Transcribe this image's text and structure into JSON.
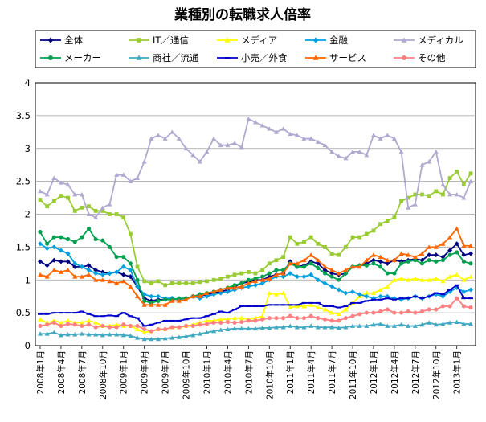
{
  "chart_data": {
    "type": "line",
    "title": "業種別の転職求人倍率",
    "xlabel": "",
    "ylabel": "",
    "ylim": [
      0,
      4
    ],
    "yticks": [
      "0",
      "0.5",
      "1",
      "1.5",
      "2",
      "2.5",
      "3",
      "3.5",
      "4"
    ],
    "grid": true,
    "legend": "top",
    "x": [
      "2008年1月",
      "2008年2月",
      "2008年3月",
      "2008年4月",
      "2008年5月",
      "2008年6月",
      "2008年7月",
      "2008年8月",
      "2008年9月",
      "2008年10月",
      "2008年11月",
      "2008年12月",
      "2009年1月",
      "2009年2月",
      "2009年3月",
      "2009年4月",
      "2009年5月",
      "2009年6月",
      "2009年7月",
      "2009年8月",
      "2009年9月",
      "2009年10月",
      "2009年11月",
      "2009年12月",
      "2010年1月",
      "2010年2月",
      "2010年3月",
      "2010年4月",
      "2010年5月",
      "2010年6月",
      "2010年7月",
      "2010年8月",
      "2010年9月",
      "2010年10月",
      "2010年11月",
      "2010年12月",
      "2011年1月",
      "2011年2月",
      "2011年3月",
      "2011年4月",
      "2011年5月",
      "2011年6月",
      "2011年7月",
      "2011年8月",
      "2011年9月",
      "2011年10月",
      "2011年11月",
      "2011年12月",
      "2012年1月",
      "2012年2月",
      "2012年3月",
      "2012年4月",
      "2012年5月",
      "2012年6月",
      "2012年7月",
      "2012年8月",
      "2012年9月",
      "2012年10月",
      "2012年11月",
      "2012年12月",
      "2013年1月",
      "2013年2月",
      "2013年3月"
    ],
    "xtick_labels": [
      "2008年1月",
      "2008年4月",
      "2008年7月",
      "2008年10月",
      "2009年1月",
      "2009年4月",
      "2009年7月",
      "2009年10月",
      "2010年1月",
      "2010年4月",
      "2010年7月",
      "2010年10月",
      "2011年1月",
      "2011年4月",
      "2011年7月",
      "2011年10月",
      "2012年1月",
      "2012年4月",
      "2012年7月",
      "2012年10月",
      "2013年1月"
    ],
    "series": [
      {
        "name": "全体",
        "color": "#000080",
        "marker": "diamond",
        "values": [
          1.28,
          1.22,
          1.3,
          1.28,
          1.28,
          1.2,
          1.2,
          1.22,
          1.15,
          1.12,
          1.1,
          1.12,
          1.08,
          1.05,
          0.9,
          0.72,
          0.68,
          0.7,
          0.7,
          0.72,
          0.7,
          0.72,
          0.75,
          0.75,
          0.78,
          0.8,
          0.82,
          0.85,
          0.9,
          0.95,
          0.97,
          1.0,
          1.0,
          1.05,
          1.08,
          1.1,
          1.28,
          1.2,
          1.22,
          1.28,
          1.25,
          1.15,
          1.1,
          1.08,
          1.1,
          1.2,
          1.22,
          1.25,
          1.3,
          1.28,
          1.25,
          1.3,
          1.28,
          1.3,
          1.32,
          1.3,
          1.38,
          1.38,
          1.35,
          1.45,
          1.55,
          1.38,
          1.4
        ]
      },
      {
        "name": "IT／通信",
        "color": "#99CC33",
        "marker": "square",
        "values": [
          2.22,
          2.12,
          2.2,
          2.28,
          2.25,
          2.05,
          2.1,
          2.12,
          2.05,
          2.05,
          2.0,
          2.0,
          1.95,
          1.7,
          1.2,
          0.98,
          0.95,
          0.98,
          0.92,
          0.95,
          0.95,
          0.95,
          0.95,
          0.97,
          0.98,
          1.0,
          1.02,
          1.05,
          1.08,
          1.1,
          1.12,
          1.1,
          1.15,
          1.25,
          1.3,
          1.35,
          1.65,
          1.55,
          1.58,
          1.65,
          1.55,
          1.5,
          1.4,
          1.38,
          1.5,
          1.65,
          1.65,
          1.7,
          1.75,
          1.85,
          1.9,
          1.95,
          2.2,
          2.25,
          2.3,
          2.3,
          2.28,
          2.35,
          2.3,
          2.55,
          2.65,
          2.45,
          2.62
        ]
      },
      {
        "name": "メディア",
        "color": "#FFFF00",
        "marker": "triangle",
        "values": [
          0.4,
          0.35,
          0.38,
          0.35,
          0.38,
          0.35,
          0.35,
          0.38,
          0.35,
          0.3,
          0.3,
          0.32,
          0.3,
          0.3,
          0.25,
          0.2,
          0.22,
          0.25,
          0.25,
          0.28,
          0.28,
          0.3,
          0.32,
          0.35,
          0.38,
          0.38,
          0.4,
          0.4,
          0.42,
          0.42,
          0.4,
          0.42,
          0.45,
          0.8,
          0.78,
          0.8,
          0.58,
          0.6,
          0.6,
          0.62,
          0.58,
          0.55,
          0.5,
          0.48,
          0.55,
          0.65,
          0.75,
          0.8,
          0.8,
          0.85,
          0.9,
          1.0,
          1.02,
          1.0,
          1.02,
          1.0,
          1.0,
          1.02,
          0.98,
          1.05,
          1.08,
          1.0,
          1.05
        ]
      },
      {
        "name": "金融",
        "color": "#00A0E0",
        "marker": "diamond",
        "values": [
          1.55,
          1.48,
          1.5,
          1.45,
          1.4,
          1.25,
          1.2,
          1.15,
          1.1,
          1.08,
          1.1,
          1.12,
          1.2,
          1.15,
          0.9,
          0.78,
          0.75,
          0.75,
          0.72,
          0.72,
          0.7,
          0.72,
          0.75,
          0.72,
          0.75,
          0.78,
          0.8,
          0.82,
          0.85,
          0.88,
          0.9,
          0.92,
          0.95,
          1.0,
          1.05,
          1.05,
          1.1,
          1.05,
          1.05,
          1.08,
          1.0,
          0.95,
          0.9,
          0.85,
          0.8,
          0.82,
          0.78,
          0.75,
          0.72,
          0.75,
          0.75,
          0.72,
          0.7,
          0.72,
          0.75,
          0.72,
          0.75,
          0.78,
          0.75,
          0.82,
          0.88,
          0.82,
          0.85
        ]
      },
      {
        "name": "メディカル",
        "color": "#B0A8D0",
        "marker": "triangle",
        "values": [
          2.35,
          2.3,
          2.55,
          2.48,
          2.45,
          2.3,
          2.3,
          2.0,
          1.95,
          2.1,
          2.15,
          2.6,
          2.6,
          2.5,
          2.55,
          2.8,
          3.15,
          3.2,
          3.15,
          3.25,
          3.15,
          3.0,
          2.9,
          2.8,
          2.95,
          3.15,
          3.05,
          3.05,
          3.08,
          3.02,
          3.45,
          3.4,
          3.35,
          3.3,
          3.25,
          3.3,
          3.22,
          3.2,
          3.15,
          3.15,
          3.1,
          3.05,
          2.95,
          2.88,
          2.85,
          2.95,
          2.95,
          2.9,
          3.2,
          3.15,
          3.2,
          3.15,
          2.95,
          2.1,
          2.15,
          2.75,
          2.8,
          2.95,
          2.45,
          2.3,
          2.3,
          2.25,
          2.5
        ]
      },
      {
        "name": "メーカー",
        "color": "#00A050",
        "marker": "circle",
        "values": [
          1.73,
          1.55,
          1.65,
          1.65,
          1.62,
          1.58,
          1.65,
          1.78,
          1.62,
          1.6,
          1.5,
          1.35,
          1.35,
          1.25,
          1.0,
          0.68,
          0.65,
          0.68,
          0.7,
          0.7,
          0.72,
          0.72,
          0.75,
          0.78,
          0.8,
          0.82,
          0.85,
          0.88,
          0.92,
          0.95,
          1.0,
          1.02,
          1.05,
          1.1,
          1.15,
          1.15,
          1.25,
          1.2,
          1.2,
          1.25,
          1.18,
          1.1,
          1.05,
          1.0,
          1.1,
          1.2,
          1.22,
          1.22,
          1.25,
          1.2,
          1.1,
          1.1,
          1.25,
          1.28,
          1.3,
          1.25,
          1.3,
          1.28,
          1.3,
          1.38,
          1.42,
          1.28,
          1.25
        ]
      },
      {
        "name": "商社／流通",
        "color": "#40A8C0",
        "marker": "triangle",
        "values": [
          0.18,
          0.18,
          0.2,
          0.16,
          0.17,
          0.17,
          0.18,
          0.17,
          0.17,
          0.16,
          0.17,
          0.17,
          0.16,
          0.15,
          0.12,
          0.1,
          0.1,
          0.1,
          0.11,
          0.12,
          0.13,
          0.14,
          0.16,
          0.18,
          0.2,
          0.22,
          0.24,
          0.25,
          0.26,
          0.26,
          0.26,
          0.26,
          0.27,
          0.27,
          0.28,
          0.28,
          0.3,
          0.28,
          0.28,
          0.3,
          0.28,
          0.28,
          0.28,
          0.27,
          0.28,
          0.3,
          0.3,
          0.3,
          0.32,
          0.33,
          0.3,
          0.3,
          0.32,
          0.3,
          0.3,
          0.32,
          0.35,
          0.32,
          0.33,
          0.35,
          0.36,
          0.33,
          0.33
        ]
      },
      {
        "name": "小売／外食",
        "color": "#0000CC",
        "marker": "dash",
        "values": [
          0.48,
          0.48,
          0.5,
          0.5,
          0.5,
          0.5,
          0.52,
          0.48,
          0.45,
          0.45,
          0.46,
          0.45,
          0.5,
          0.45,
          0.42,
          0.3,
          0.32,
          0.35,
          0.38,
          0.38,
          0.38,
          0.4,
          0.42,
          0.42,
          0.45,
          0.48,
          0.52,
          0.5,
          0.55,
          0.6,
          0.6,
          0.6,
          0.6,
          0.62,
          0.62,
          0.62,
          0.62,
          0.62,
          0.65,
          0.65,
          0.65,
          0.6,
          0.6,
          0.58,
          0.6,
          0.65,
          0.65,
          0.68,
          0.7,
          0.7,
          0.72,
          0.7,
          0.72,
          0.72,
          0.75,
          0.72,
          0.75,
          0.8,
          0.78,
          0.85,
          0.92,
          0.72,
          0.72
        ]
      },
      {
        "name": "サービス",
        "color": "#FF6600",
        "marker": "triangle",
        "values": [
          1.08,
          1.05,
          1.15,
          1.12,
          1.15,
          1.05,
          1.05,
          1.08,
          1.0,
          1.0,
          0.98,
          0.95,
          0.98,
          0.9,
          0.75,
          0.62,
          0.62,
          0.62,
          0.62,
          0.68,
          0.68,
          0.7,
          0.75,
          0.75,
          0.8,
          0.82,
          0.85,
          0.88,
          0.88,
          0.9,
          0.95,
          0.98,
          1.0,
          1.02,
          1.08,
          1.1,
          1.25,
          1.25,
          1.3,
          1.38,
          1.3,
          1.2,
          1.15,
          1.1,
          1.15,
          1.2,
          1.2,
          1.3,
          1.38,
          1.35,
          1.3,
          1.3,
          1.4,
          1.38,
          1.35,
          1.4,
          1.5,
          1.5,
          1.55,
          1.65,
          1.78,
          1.52,
          1.52
        ]
      },
      {
        "name": "その他",
        "color": "#FF8080",
        "marker": "circle",
        "values": [
          0.3,
          0.32,
          0.35,
          0.3,
          0.33,
          0.32,
          0.3,
          0.32,
          0.28,
          0.3,
          0.28,
          0.28,
          0.32,
          0.3,
          0.3,
          0.25,
          0.22,
          0.25,
          0.25,
          0.28,
          0.28,
          0.3,
          0.3,
          0.32,
          0.33,
          0.35,
          0.35,
          0.36,
          0.35,
          0.36,
          0.38,
          0.38,
          0.4,
          0.42,
          0.42,
          0.42,
          0.45,
          0.42,
          0.42,
          0.45,
          0.42,
          0.4,
          0.38,
          0.38,
          0.42,
          0.45,
          0.48,
          0.5,
          0.5,
          0.52,
          0.55,
          0.5,
          0.5,
          0.52,
          0.5,
          0.52,
          0.55,
          0.55,
          0.6,
          0.6,
          0.72,
          0.6,
          0.58
        ]
      }
    ]
  }
}
